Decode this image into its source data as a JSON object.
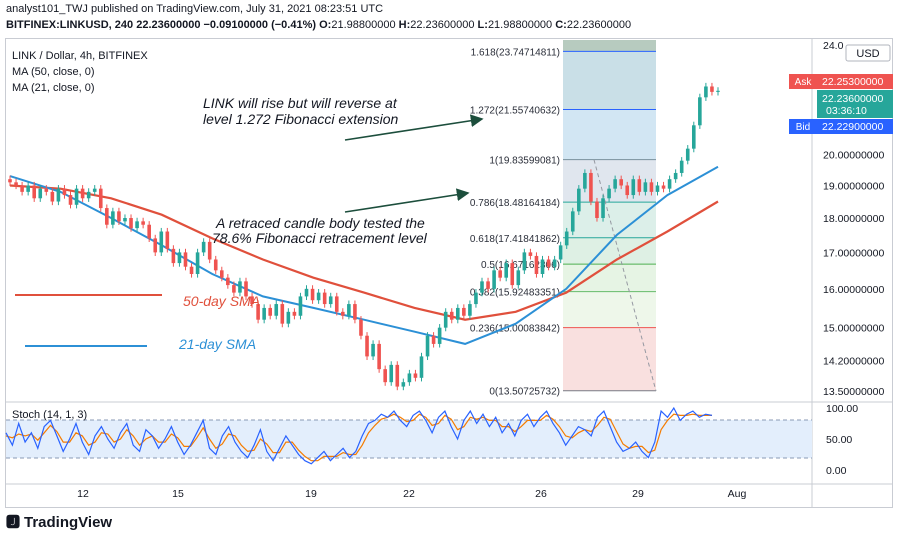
{
  "header": {
    "publisher_line": "analyst101_TWJ published on TradingView.com, July 31, 2021 08:23:51 UTC",
    "symbol": "BITFINEX:LINKUSD, 240",
    "last": "22.23600000",
    "change": "−0.09100000 (−0.41%)",
    "o_label": "O:",
    "o_value": "21.98800000",
    "h_label": "H:",
    "h_value": "22.23600000",
    "l_label": "L:",
    "l_value": "21.98800000",
    "c_label": "C:",
    "c_value": "22.23600000"
  },
  "legend": {
    "title": "LINK / Dollar, 4h, BITFINEX",
    "ma50": "MA (50, close, 0)",
    "ma21": "MA (21, close, 0)"
  },
  "annotations": {
    "rise_line1": "LINK will rise but will reverse at",
    "rise_line2": "level 1.272 Fibonacci extension",
    "retrace_line1": "A retraced candle body tested the",
    "retrace_line2": "78.6% Fibonacci retracement level",
    "sma50": "50-day SMA",
    "sma21": "21-day SMA"
  },
  "price_panel": {
    "currency": "USD",
    "ask_label": "Ask",
    "ask": "22.25300000",
    "last": "22.23600000",
    "countdown": "03:36:10",
    "bid_label": "Bid",
    "bid": "22.22900000",
    "ticks": [
      "24.0",
      "20.00000000",
      "19.00000000",
      "18.00000000",
      "17.00000000",
      "16.00000000",
      "15.00000000",
      "14.20000000",
      "13.50000000"
    ]
  },
  "fib_levels": [
    {
      "label": "1.618(23.74714811)"
    },
    {
      "label": "1.272(21.55740632)"
    },
    {
      "label": "1(19.83599081)"
    },
    {
      "label": "0.786(18.48164184)"
    },
    {
      "label": "0.618(17.41841862)"
    },
    {
      "label": "0.5(16.67162306)"
    },
    {
      "label": "0.382(15.92483351)"
    },
    {
      "label": "0.236(15.00083842)"
    },
    {
      "label": "0(13.50725732)"
    }
  ],
  "stoch": {
    "title": "Stoch (14, 1, 3)",
    "ticks": [
      "100.00",
      "50.00",
      "0.00"
    ],
    "k": [
      60,
      40,
      75,
      45,
      60,
      35,
      70,
      80,
      55,
      30,
      50,
      75,
      45,
      25,
      55,
      70,
      50,
      35,
      60,
      75,
      40,
      30,
      65,
      55,
      35,
      50,
      70,
      45,
      25,
      40,
      60,
      80,
      35,
      25,
      55,
      70,
      45,
      30,
      20,
      40,
      65,
      30,
      15,
      35,
      55,
      40,
      25,
      15,
      10,
      20,
      30,
      15,
      25,
      35,
      20,
      30,
      55,
      75,
      80,
      90,
      85,
      95,
      80,
      70,
      88,
      95,
      80,
      60,
      85,
      95,
      70,
      50,
      80,
      95,
      75,
      90,
      70,
      85,
      60,
      75,
      55,
      80,
      90,
      70,
      85,
      95,
      75,
      60,
      40,
      55,
      70,
      65,
      55,
      85,
      95,
      70,
      45,
      30,
      35,
      45,
      30,
      20,
      45,
      95,
      85,
      100,
      80,
      90,
      95,
      85,
      90,
      88
    ],
    "d": [
      55,
      52,
      58,
      55,
      58,
      48,
      60,
      72,
      62,
      45,
      45,
      60,
      55,
      40,
      45,
      60,
      58,
      45,
      50,
      65,
      55,
      40,
      50,
      55,
      45,
      45,
      58,
      52,
      38,
      38,
      52,
      68,
      50,
      35,
      42,
      58,
      55,
      40,
      30,
      32,
      50,
      42,
      28,
      28,
      45,
      45,
      32,
      22,
      15,
      15,
      22,
      22,
      22,
      28,
      25,
      25,
      40,
      60,
      72,
      82,
      85,
      90,
      85,
      78,
      80,
      90,
      85,
      72,
      75,
      88,
      82,
      65,
      70,
      85,
      82,
      85,
      80,
      80,
      70,
      70,
      62,
      70,
      80,
      80,
      80,
      88,
      82,
      70,
      55,
      52,
      60,
      65,
      62,
      72,
      85,
      82,
      62,
      42,
      35,
      38,
      38,
      28,
      32,
      65,
      80,
      90,
      88,
      88,
      90,
      88,
      88,
      88
    ]
  },
  "x_axis": [
    "12",
    "15",
    "19",
    "22",
    "26",
    "29",
    "Aug"
  ],
  "footer": {
    "brand": "TradingView"
  },
  "colors": {
    "up": "#26a69a",
    "down": "#ef5350",
    "ma50": "#e0503c",
    "ma21": "#2c90d6",
    "stoch_k": "#2962ff",
    "stoch_d": "#f57c00"
  },
  "chart_data": {
    "type": "candlestick",
    "title": "LINK / Dollar, 4h, BITFINEX",
    "ylim": [
      13.3,
      24.2
    ],
    "y_scale": "log",
    "x_labels": [
      "12",
      "15",
      "19",
      "22",
      "26",
      "29",
      "Aug"
    ],
    "closes": [
      19.1,
      19.0,
      18.8,
      19.0,
      18.6,
      18.9,
      18.8,
      18.5,
      18.9,
      18.7,
      18.4,
      18.9,
      18.6,
      18.8,
      18.9,
      18.3,
      17.8,
      18.2,
      17.9,
      18.0,
      17.7,
      17.9,
      17.8,
      17.4,
      17.0,
      17.6,
      17.1,
      16.7,
      17.0,
      16.6,
      16.4,
      17.0,
      17.3,
      16.8,
      16.5,
      16.3,
      16.1,
      15.9,
      16.2,
      15.8,
      15.6,
      15.2,
      15.5,
      15.3,
      15.6,
      15.1,
      15.4,
      15.3,
      15.8,
      16.0,
      15.7,
      15.9,
      15.6,
      15.8,
      15.4,
      15.3,
      15.6,
      15.2,
      14.8,
      14.3,
      14.6,
      14.0,
      13.7,
      14.1,
      13.6,
      13.7,
      13.9,
      13.8,
      14.3,
      14.8,
      14.6,
      15.0,
      15.4,
      15.2,
      15.5,
      15.3,
      15.6,
      15.9,
      16.2,
      16.0,
      16.5,
      16.3,
      16.7,
      16.1,
      16.5,
      17.0,
      16.9,
      16.4,
      16.8,
      16.6,
      16.8,
      17.2,
      17.6,
      18.2,
      18.9,
      19.4,
      18.5,
      18.0,
      18.6,
      18.9,
      19.2,
      19.0,
      18.7,
      19.2,
      18.8,
      19.1,
      18.8,
      19.0,
      18.9,
      19.2,
      19.4,
      19.8,
      20.2,
      21.0,
      22.0,
      22.4,
      22.2,
      22.24
    ],
    "sma50": [
      19.0,
      18.9,
      18.6,
      18.1,
      17.4,
      16.8,
      16.3,
      15.9,
      15.5,
      15.2,
      15.4,
      15.9,
      16.8,
      17.6,
      18.5
    ],
    "sma21": [
      19.3,
      18.8,
      18.0,
      17.2,
      16.4,
      15.8,
      15.5,
      15.2,
      14.9,
      14.6,
      15.1,
      16.0,
      17.5,
      18.7,
      19.6
    ]
  }
}
